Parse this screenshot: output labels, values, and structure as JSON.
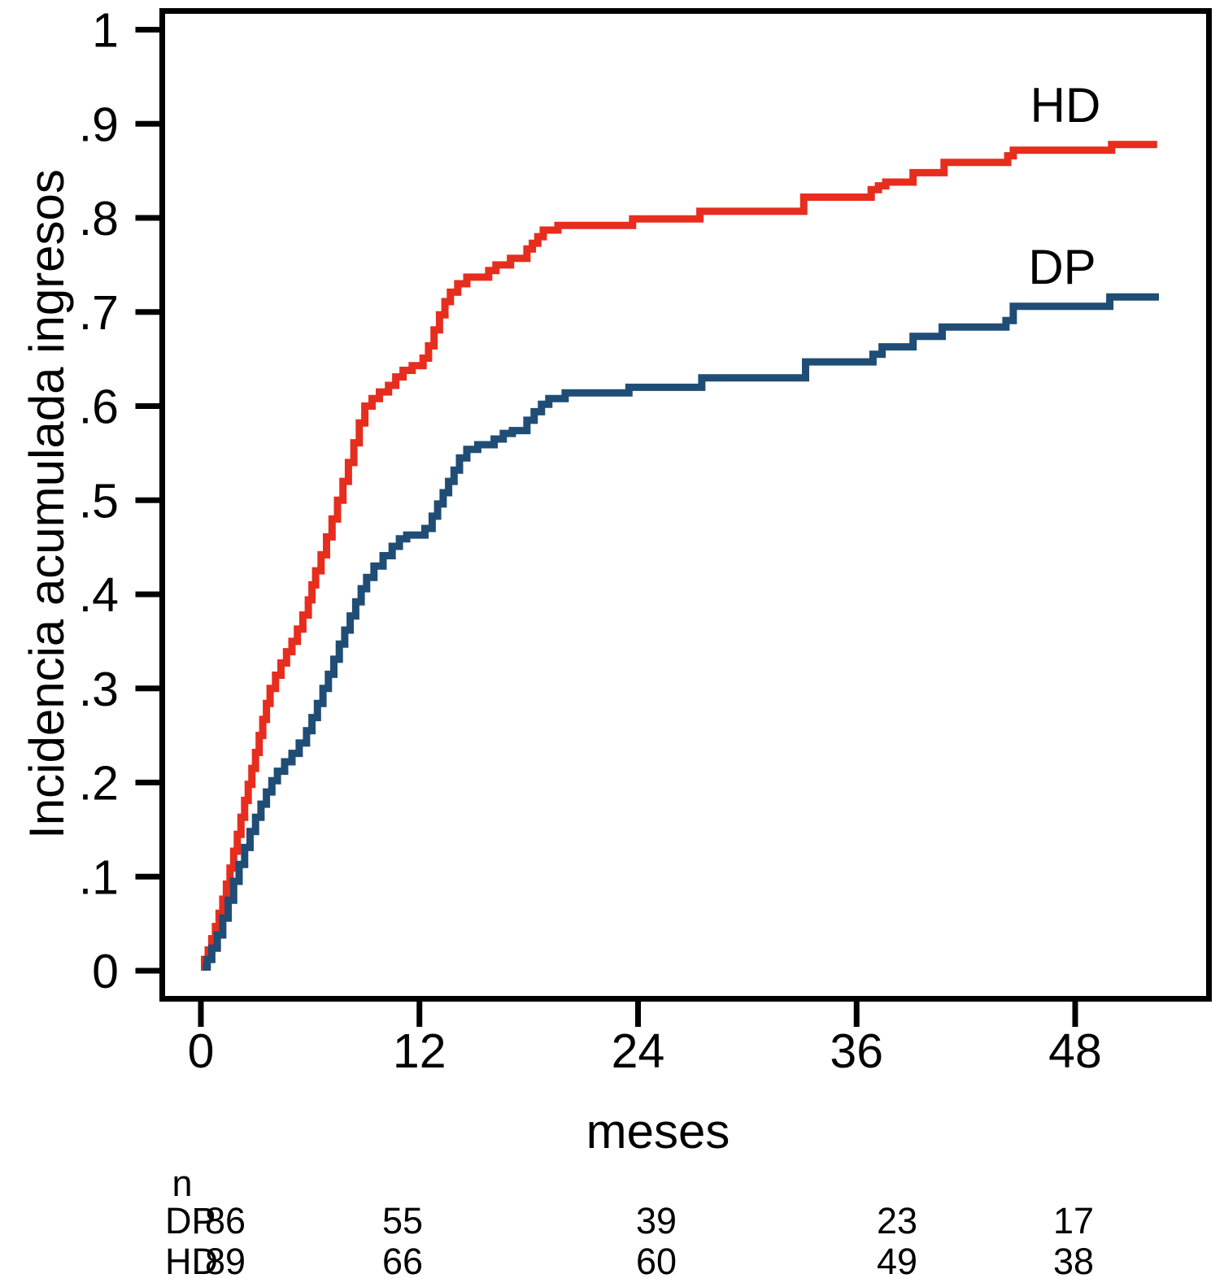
{
  "chart_data": {
    "type": "line",
    "subtype": "cumulative-incidence-step-curves",
    "title": "",
    "ylabel": "Incidencia acumulada ingresos",
    "xlabel": "meses",
    "grid": false,
    "legend_position": "labels-at-line-end",
    "xlim": [
      0,
      55.5
    ],
    "ylim": [
      0,
      1.03
    ],
    "x_ticks": [
      0,
      12,
      24,
      36,
      48
    ],
    "x_tick_labels": [
      "0",
      "12",
      "24",
      "36",
      "48"
    ],
    "y_ticks": [
      0,
      0.1,
      0.2,
      0.3,
      0.4,
      0.5,
      0.6,
      0.7,
      0.8,
      0.9,
      1
    ],
    "y_tick_labels": [
      "0",
      ".1",
      ".2",
      ".3",
      ".4",
      ".5",
      ".6",
      ".7",
      ".8",
      ".9",
      "1"
    ],
    "series": [
      {
        "name": "HD",
        "color": "#e62d1e",
        "end_month": 52.5,
        "steps": [
          [
            0,
            0.004
          ],
          [
            0.2,
            0.012
          ],
          [
            0.4,
            0.022
          ],
          [
            0.6,
            0.034
          ],
          [
            0.8,
            0.047
          ],
          [
            1.0,
            0.061
          ],
          [
            1.2,
            0.076
          ],
          [
            1.4,
            0.092
          ],
          [
            1.6,
            0.109
          ],
          [
            1.8,
            0.127
          ],
          [
            2.0,
            0.145
          ],
          [
            2.2,
            0.163
          ],
          [
            2.4,
            0.181
          ],
          [
            2.6,
            0.198
          ],
          [
            2.8,
            0.215
          ],
          [
            3.0,
            0.232
          ],
          [
            3.2,
            0.25
          ],
          [
            3.4,
            0.267
          ],
          [
            3.6,
            0.284
          ],
          [
            3.8,
            0.3
          ],
          [
            4.1,
            0.314
          ],
          [
            4.4,
            0.327
          ],
          [
            4.7,
            0.339
          ],
          [
            5.0,
            0.35
          ],
          [
            5.3,
            0.363
          ],
          [
            5.6,
            0.378
          ],
          [
            5.9,
            0.394
          ],
          [
            6.1,
            0.41
          ],
          [
            6.3,
            0.425
          ],
          [
            6.6,
            0.442
          ],
          [
            6.9,
            0.461
          ],
          [
            7.2,
            0.48
          ],
          [
            7.5,
            0.5
          ],
          [
            7.8,
            0.52
          ],
          [
            8.1,
            0.54
          ],
          [
            8.4,
            0.561
          ],
          [
            8.7,
            0.582
          ],
          [
            9.0,
            0.6
          ],
          [
            9.4,
            0.608
          ],
          [
            9.8,
            0.615
          ],
          [
            10.3,
            0.622
          ],
          [
            10.7,
            0.631
          ],
          [
            11.1,
            0.638
          ],
          [
            11.6,
            0.643
          ],
          [
            12.2,
            0.651
          ],
          [
            12.5,
            0.664
          ],
          [
            12.8,
            0.681
          ],
          [
            13.1,
            0.697
          ],
          [
            13.4,
            0.711
          ],
          [
            13.7,
            0.721
          ],
          [
            14.1,
            0.73
          ],
          [
            14.6,
            0.737
          ],
          [
            15.8,
            0.744
          ],
          [
            16.2,
            0.75
          ],
          [
            17.0,
            0.757
          ],
          [
            17.9,
            0.767
          ],
          [
            18.2,
            0.773
          ],
          [
            18.5,
            0.78
          ],
          [
            18.8,
            0.787
          ],
          [
            19.6,
            0.792
          ],
          [
            23.7,
            0.799
          ],
          [
            27.4,
            0.807
          ],
          [
            33.1,
            0.822
          ],
          [
            36.8,
            0.83
          ],
          [
            37.2,
            0.834
          ],
          [
            37.6,
            0.838
          ],
          [
            39.1,
            0.848
          ],
          [
            40.8,
            0.859
          ],
          [
            44.3,
            0.866
          ],
          [
            44.6,
            0.872
          ],
          [
            50.0,
            0.878
          ]
        ]
      },
      {
        "name": "DP",
        "color": "#1f4d75",
        "end_month": 52.6,
        "steps": [
          [
            0.1,
            0.004
          ],
          [
            0.35,
            0.012
          ],
          [
            0.6,
            0.024
          ],
          [
            0.9,
            0.038
          ],
          [
            1.2,
            0.056
          ],
          [
            1.5,
            0.075
          ],
          [
            1.8,
            0.095
          ],
          [
            2.1,
            0.113
          ],
          [
            2.4,
            0.131
          ],
          [
            2.7,
            0.148
          ],
          [
            3.0,
            0.163
          ],
          [
            3.3,
            0.177
          ],
          [
            3.6,
            0.19
          ],
          [
            3.9,
            0.202
          ],
          [
            4.2,
            0.212
          ],
          [
            4.6,
            0.222
          ],
          [
            5.0,
            0.231
          ],
          [
            5.4,
            0.242
          ],
          [
            5.8,
            0.255
          ],
          [
            6.1,
            0.269
          ],
          [
            6.4,
            0.284
          ],
          [
            6.7,
            0.3
          ],
          [
            7.0,
            0.315
          ],
          [
            7.3,
            0.331
          ],
          [
            7.6,
            0.347
          ],
          [
            7.9,
            0.362
          ],
          [
            8.2,
            0.377
          ],
          [
            8.5,
            0.392
          ],
          [
            8.8,
            0.406
          ],
          [
            9.1,
            0.418
          ],
          [
            9.5,
            0.43
          ],
          [
            10.0,
            0.441
          ],
          [
            10.5,
            0.451
          ],
          [
            10.9,
            0.459
          ],
          [
            11.3,
            0.463
          ],
          [
            12.3,
            0.47
          ],
          [
            12.7,
            0.483
          ],
          [
            13.0,
            0.496
          ],
          [
            13.3,
            0.508
          ],
          [
            13.6,
            0.52
          ],
          [
            13.9,
            0.532
          ],
          [
            14.2,
            0.545
          ],
          [
            14.6,
            0.554
          ],
          [
            15.2,
            0.559
          ],
          [
            16.1,
            0.565
          ],
          [
            16.6,
            0.571
          ],
          [
            17.1,
            0.574
          ],
          [
            17.9,
            0.585
          ],
          [
            18.3,
            0.594
          ],
          [
            18.7,
            0.602
          ],
          [
            19.1,
            0.608
          ],
          [
            20.0,
            0.614
          ],
          [
            23.5,
            0.62
          ],
          [
            27.5,
            0.63
          ],
          [
            33.2,
            0.647
          ],
          [
            36.9,
            0.655
          ],
          [
            37.4,
            0.663
          ],
          [
            39.1,
            0.674
          ],
          [
            40.7,
            0.684
          ],
          [
            44.2,
            0.691
          ],
          [
            44.6,
            0.706
          ],
          [
            49.9,
            0.716
          ]
        ]
      }
    ],
    "risk_table": {
      "header": "n",
      "months": [
        0,
        12,
        24,
        36,
        48
      ],
      "rows": [
        {
          "name": "DP",
          "counts": [
            "86",
            "55",
            "39",
            "23",
            "17"
          ]
        },
        {
          "name": "HD",
          "counts": [
            "89",
            "66",
            "60",
            "49",
            "38"
          ]
        }
      ]
    }
  }
}
